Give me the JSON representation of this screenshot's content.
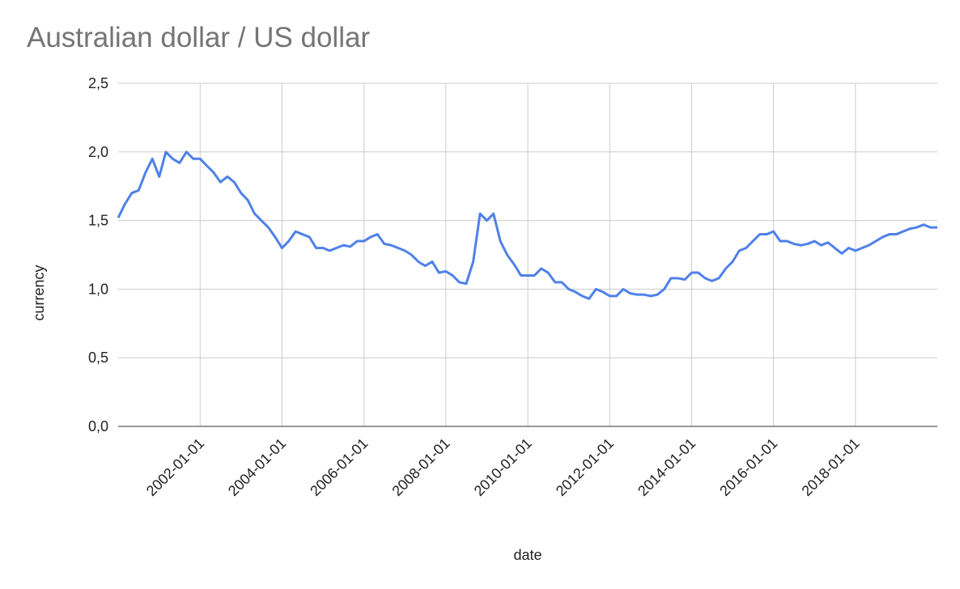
{
  "chart_data": {
    "type": "line",
    "title": "Australian dollar / US dollar",
    "x_label": "date",
    "y_label": "currency",
    "x": [
      "2000-01-01",
      "2000-03-01",
      "2000-05-01",
      "2000-07-01",
      "2000-09-01",
      "2000-11-01",
      "2001-01-01",
      "2001-03-01",
      "2001-05-01",
      "2001-07-01",
      "2001-09-01",
      "2001-11-01",
      "2002-01-01",
      "2002-03-01",
      "2002-05-01",
      "2002-07-01",
      "2002-09-01",
      "2002-11-01",
      "2003-01-01",
      "2003-03-01",
      "2003-05-01",
      "2003-07-01",
      "2003-09-01",
      "2003-11-01",
      "2004-01-01",
      "2004-03-01",
      "2004-05-01",
      "2004-07-01",
      "2004-09-01",
      "2004-11-01",
      "2005-01-01",
      "2005-03-01",
      "2005-05-01",
      "2005-07-01",
      "2005-09-01",
      "2005-11-01",
      "2006-01-01",
      "2006-03-01",
      "2006-05-01",
      "2006-07-01",
      "2006-09-01",
      "2006-11-01",
      "2007-01-01",
      "2007-03-01",
      "2007-05-01",
      "2007-07-01",
      "2007-09-01",
      "2007-11-01",
      "2008-01-01",
      "2008-03-01",
      "2008-05-01",
      "2008-07-01",
      "2008-09-01",
      "2008-11-01",
      "2009-01-01",
      "2009-03-01",
      "2009-05-01",
      "2009-07-01",
      "2009-09-01",
      "2009-11-01",
      "2010-01-01",
      "2010-03-01",
      "2010-05-01",
      "2010-07-01",
      "2010-09-01",
      "2010-11-01",
      "2011-01-01",
      "2011-03-01",
      "2011-05-01",
      "2011-07-01",
      "2011-09-01",
      "2011-11-01",
      "2012-01-01",
      "2012-03-01",
      "2012-05-01",
      "2012-07-01",
      "2012-09-01",
      "2012-11-01",
      "2013-01-01",
      "2013-03-01",
      "2013-05-01",
      "2013-07-01",
      "2013-09-01",
      "2013-11-01",
      "2014-01-01",
      "2014-03-01",
      "2014-05-01",
      "2014-07-01",
      "2014-09-01",
      "2014-11-01",
      "2015-01-01",
      "2015-03-01",
      "2015-05-01",
      "2015-07-01",
      "2015-09-01",
      "2015-11-01",
      "2016-01-01",
      "2016-03-01",
      "2016-05-01",
      "2016-07-01",
      "2016-09-01",
      "2016-11-01",
      "2017-01-01",
      "2017-03-01",
      "2017-05-01",
      "2017-07-01",
      "2017-09-01",
      "2017-11-01",
      "2018-01-01",
      "2018-03-01",
      "2018-05-01",
      "2018-07-01",
      "2018-09-01",
      "2018-11-01",
      "2019-01-01",
      "2019-03-01",
      "2019-05-01",
      "2019-07-01",
      "2019-09-01",
      "2019-11-01",
      "2020-01-01"
    ],
    "series": [
      {
        "name": "currency",
        "color": "#4f81e8",
        "values": [
          1.52,
          1.62,
          1.7,
          1.72,
          1.85,
          1.95,
          1.82,
          2.0,
          1.95,
          1.92,
          2.0,
          1.95,
          1.95,
          1.9,
          1.85,
          1.78,
          1.82,
          1.78,
          1.7,
          1.65,
          1.55,
          1.5,
          1.45,
          1.38,
          1.3,
          1.35,
          1.42,
          1.4,
          1.38,
          1.3,
          1.3,
          1.28,
          1.3,
          1.32,
          1.31,
          1.35,
          1.35,
          1.38,
          1.4,
          1.33,
          1.32,
          1.3,
          1.28,
          1.25,
          1.2,
          1.17,
          1.2,
          1.12,
          1.13,
          1.1,
          1.05,
          1.04,
          1.2,
          1.55,
          1.5,
          1.55,
          1.35,
          1.25,
          1.18,
          1.1,
          1.1,
          1.1,
          1.15,
          1.12,
          1.05,
          1.05,
          1.0,
          0.98,
          0.95,
          0.93,
          1.0,
          0.98,
          0.95,
          0.95,
          1.0,
          0.97,
          0.96,
          0.96,
          0.95,
          0.96,
          1.0,
          1.08,
          1.08,
          1.07,
          1.12,
          1.12,
          1.08,
          1.06,
          1.08,
          1.15,
          1.2,
          1.28,
          1.3,
          1.35,
          1.4,
          1.4,
          1.42,
          1.35,
          1.35,
          1.33,
          1.32,
          1.33,
          1.35,
          1.32,
          1.34,
          1.3,
          1.26,
          1.3,
          1.28,
          1.3,
          1.32,
          1.35,
          1.38,
          1.4,
          1.4,
          1.42,
          1.44,
          1.45,
          1.47,
          1.45,
          1.45
        ]
      }
    ],
    "xlim": [
      "2000-01-01",
      "2020-01-01"
    ],
    "xticks": [
      "2002-01-01",
      "2004-01-01",
      "2006-01-01",
      "2008-01-01",
      "2010-01-01",
      "2012-01-01",
      "2014-01-01",
      "2016-01-01",
      "2018-01-01"
    ],
    "ylim": [
      0,
      2.5
    ],
    "yticks": [
      {
        "value": 0,
        "label": "0,0"
      },
      {
        "value": 0.5,
        "label": "0,5"
      },
      {
        "value": 1,
        "label": "1,0"
      },
      {
        "value": 1.5,
        "label": "1,5"
      },
      {
        "value": 2,
        "label": "2,0"
      },
      {
        "value": 2.5,
        "label": "2,5"
      }
    ],
    "grid": true
  }
}
